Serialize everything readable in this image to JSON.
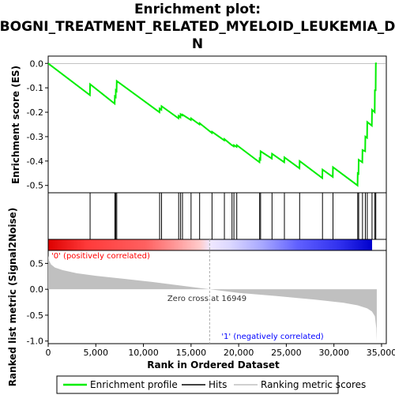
{
  "chart_data": {
    "type": "line",
    "title_lines": [
      "Enrichment plot:",
      "BOGNI_TREATMENT_RELATED_MYELOID_LEUKEMIA_D",
      "N"
    ],
    "es_ylabel": "Enrichment score (ES)",
    "metric_ylabel_lines": [
      "Ranked list metric (Signal2Noise)"
    ],
    "xlabel": "Rank in Ordered Dataset",
    "xlim": [
      0,
      35500
    ],
    "es_ylim": [
      -0.53,
      0.03
    ],
    "metric_ylim": [
      -1.05,
      0.75
    ],
    "x_ticks": [
      0,
      5000,
      10000,
      15000,
      20000,
      25000,
      30000,
      35000
    ],
    "x_tick_labels": [
      "0",
      "5,000",
      "10,000",
      "15,000",
      "20,000",
      "25,000",
      "30,000",
      "35,000"
    ],
    "es_ticks": [
      0.0,
      -0.1,
      -0.2,
      -0.3,
      -0.4,
      -0.5
    ],
    "es_tick_labels": [
      "0.0",
      "-0.1",
      "-0.2",
      "-0.3",
      "-0.4",
      "-0.5"
    ],
    "metric_ticks": [
      0.5,
      0.0,
      -0.5,
      -1.0
    ],
    "metric_tick_labels": [
      "0.5",
      "0.0",
      "-0.5",
      "-1.0"
    ],
    "positive_label": "'0' (positively correlated)",
    "negative_label": "'1' (negatively correlated)",
    "zero_cross_label": "Zero cross at 16949",
    "zero_cross": 16949,
    "max_rank": 34500,
    "hits": [
      4400,
      7000,
      7100,
      7200,
      11700,
      11900,
      13700,
      13900,
      14100,
      15000,
      15900,
      17200,
      18500,
      19300,
      19500,
      19800,
      22200,
      22300,
      23500,
      24800,
      26400,
      28800,
      29900,
      32500,
      32600,
      33000,
      33300,
      33500,
      34000,
      34300,
      34400
    ],
    "es_curve": {
      "x": [
        0,
        4380,
        4400,
        6980,
        7000,
        7090,
        7100,
        7180,
        7200,
        11680,
        11700,
        11880,
        11900,
        13680,
        13700,
        13880,
        13900,
        14080,
        14100,
        14980,
        15000,
        15880,
        15900,
        17180,
        17200,
        18480,
        18500,
        19280,
        19300,
        19480,
        19500,
        19780,
        19800,
        22180,
        22200,
        22280,
        22300,
        23480,
        23500,
        24780,
        24800,
        26380,
        26400,
        28780,
        28800,
        29880,
        29900,
        32480,
        32500,
        32580,
        32600,
        32980,
        33000,
        33280,
        33300,
        33480,
        33500,
        33980,
        34000,
        34280,
        34300,
        34380,
        34400,
        34500
      ],
      "y": [
        0.0,
        -0.13,
        -0.085,
        -0.165,
        -0.135,
        -0.138,
        -0.11,
        -0.113,
        -0.072,
        -0.2,
        -0.185,
        -0.19,
        -0.175,
        -0.225,
        -0.215,
        -0.221,
        -0.208,
        -0.213,
        -0.21,
        -0.232,
        -0.225,
        -0.25,
        -0.245,
        -0.285,
        -0.28,
        -0.315,
        -0.31,
        -0.335,
        -0.335,
        -0.34,
        -0.335,
        -0.342,
        -0.335,
        -0.405,
        -0.39,
        -0.393,
        -0.36,
        -0.39,
        -0.37,
        -0.405,
        -0.385,
        -0.43,
        -0.4,
        -0.47,
        -0.435,
        -0.465,
        -0.425,
        -0.5,
        -0.45,
        -0.452,
        -0.395,
        -0.405,
        -0.355,
        -0.36,
        -0.3,
        -0.305,
        -0.24,
        -0.255,
        -0.19,
        -0.2,
        -0.11,
        -0.11,
        0.0,
        0.0
      ]
    },
    "metric_curve": {
      "x": [
        0,
        100,
        300,
        700,
        1500,
        3000,
        5000,
        8000,
        11000,
        14000,
        16949,
        20000,
        24000,
        28000,
        31000,
        32500,
        33500,
        34000,
        34300,
        34450,
        34500
      ],
      "y": [
        0.65,
        0.55,
        0.48,
        0.42,
        0.37,
        0.31,
        0.26,
        0.2,
        0.14,
        0.07,
        0.0,
        -0.07,
        -0.13,
        -0.2,
        -0.26,
        -0.31,
        -0.37,
        -0.43,
        -0.52,
        -0.75,
        -1.0
      ]
    },
    "legend": [
      "Enrichment profile",
      "Hits",
      "Ranking metric scores"
    ],
    "colors": {
      "es_line": "#00ee00",
      "hit_line": "#000000",
      "metric_fill": "#c0c0c0",
      "positive_text": "#ff0000",
      "negative_text": "#0000ff",
      "zero_line": "#aaaaaa"
    }
  }
}
